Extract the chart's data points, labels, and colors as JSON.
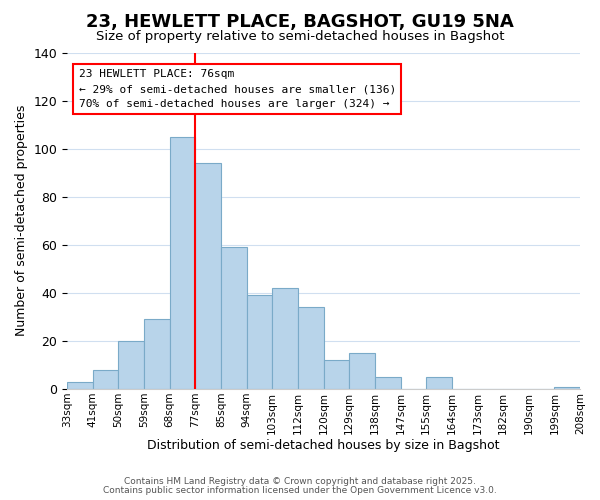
{
  "title": "23, HEWLETT PLACE, BAGSHOT, GU19 5NA",
  "subtitle": "Size of property relative to semi-detached houses in Bagshot",
  "xlabel": "Distribution of semi-detached houses by size in Bagshot",
  "ylabel": "Number of semi-detached properties",
  "bar_color": "#b8d4ea",
  "bar_edge_color": "#7aaac8",
  "background_color": "#ffffff",
  "grid_color": "#d0dff0",
  "bins": [
    "33sqm",
    "41sqm",
    "50sqm",
    "59sqm",
    "68sqm",
    "77sqm",
    "85sqm",
    "94sqm",
    "103sqm",
    "112sqm",
    "120sqm",
    "129sqm",
    "138sqm",
    "147sqm",
    "155sqm",
    "164sqm",
    "173sqm",
    "182sqm",
    "190sqm",
    "199sqm",
    "208sqm"
  ],
  "values": [
    3,
    8,
    20,
    29,
    105,
    94,
    59,
    39,
    42,
    34,
    12,
    15,
    5,
    0,
    5,
    0,
    0,
    0,
    0,
    1
  ],
  "vline_x": 5.0,
  "annotation_title": "23 HEWLETT PLACE: 76sqm",
  "annotation_line1": "← 29% of semi-detached houses are smaller (136)",
  "annotation_line2": "70% of semi-detached houses are larger (324) →",
  "ylim": [
    0,
    140
  ],
  "yticks": [
    0,
    20,
    40,
    60,
    80,
    100,
    120,
    140
  ],
  "footer1": "Contains HM Land Registry data © Crown copyright and database right 2025.",
  "footer2": "Contains public sector information licensed under the Open Government Licence v3.0."
}
